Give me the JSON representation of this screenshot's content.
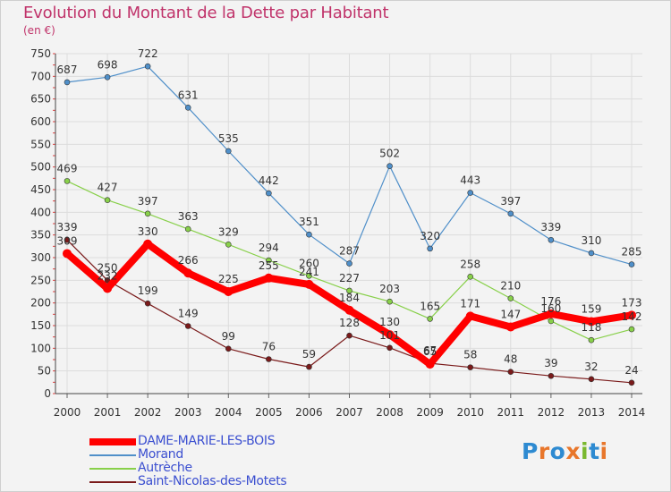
{
  "title": "Evolution du Montant de la Dette par Habitant",
  "subtitle": "(en €)",
  "logo": {
    "text": "Proxiti",
    "letters": [
      {
        "ch": "P",
        "color": "#2d8ad1"
      },
      {
        "ch": "r",
        "color": "#e8762b"
      },
      {
        "ch": "o",
        "color": "#2d8ad1"
      },
      {
        "ch": "x",
        "color": "#e8762b"
      },
      {
        "ch": "i",
        "color": "#7ab82f"
      },
      {
        "ch": "t",
        "color": "#2d8ad1"
      },
      {
        "ch": "i",
        "color": "#e8762b"
      }
    ]
  },
  "chart_data": {
    "type": "line",
    "title": "Evolution du Montant de la Dette par Habitant",
    "subtitle": "(en €)",
    "xlabel": "",
    "ylabel": "",
    "x": [
      "2000",
      "2001",
      "2002",
      "2003",
      "2004",
      "2005",
      "2006",
      "2007",
      "2008",
      "2009",
      "2010",
      "2011",
      "2012",
      "2013",
      "2014"
    ],
    "ylim": [
      0,
      750
    ],
    "yticks": [
      0,
      50,
      100,
      150,
      200,
      250,
      300,
      350,
      400,
      450,
      500,
      550,
      600,
      650,
      700,
      750
    ],
    "grid": true,
    "legend_position": "bottom-left",
    "series": [
      {
        "name": "DAME-MARIE-LES-BOIS",
        "color": "#ff0000",
        "values": [
          309,
          232,
          330,
          266,
          225,
          255,
          241,
          184,
          130,
          65,
          171,
          147,
          176,
          159,
          173
        ],
        "labels": [
          "309",
          "232",
          "330",
          "266",
          "225",
          "255",
          "241",
          "184",
          "130",
          "65",
          "171",
          "147",
          "176",
          "159",
          "173"
        ]
      },
      {
        "name": "Morand",
        "color": "#4f8fc9",
        "values": [
          687,
          698,
          722,
          631,
          535,
          442,
          351,
          287,
          502,
          320,
          443,
          397,
          339,
          310,
          285
        ],
        "labels": [
          "687",
          "698",
          "722",
          "631",
          "535",
          "442",
          "351",
          "287",
          "502",
          "320",
          "443",
          "397",
          "339",
          "310",
          "285"
        ]
      },
      {
        "name": "Autrèche",
        "color": "#88d04a",
        "values": [
          469,
          427,
          397,
          363,
          329,
          294,
          260,
          227,
          203,
          165,
          258,
          210,
          160,
          118,
          142
        ],
        "labels": [
          "469",
          "427",
          "397",
          "363",
          "329",
          "294",
          "260",
          "227",
          "203",
          "165",
          "258",
          "210",
          "160",
          "118",
          "142"
        ]
      },
      {
        "name": "Saint-Nicolas-des-Motets",
        "color": "#7a1a1a",
        "values": [
          339,
          250,
          199,
          149,
          99,
          76,
          59,
          128,
          101,
          67,
          58,
          48,
          39,
          32,
          24
        ],
        "labels": [
          "339",
          "250",
          "199",
          "149",
          "99",
          "76",
          "59",
          "128",
          "101",
          "67",
          "58",
          "48",
          "39",
          "32",
          "24"
        ]
      }
    ]
  }
}
